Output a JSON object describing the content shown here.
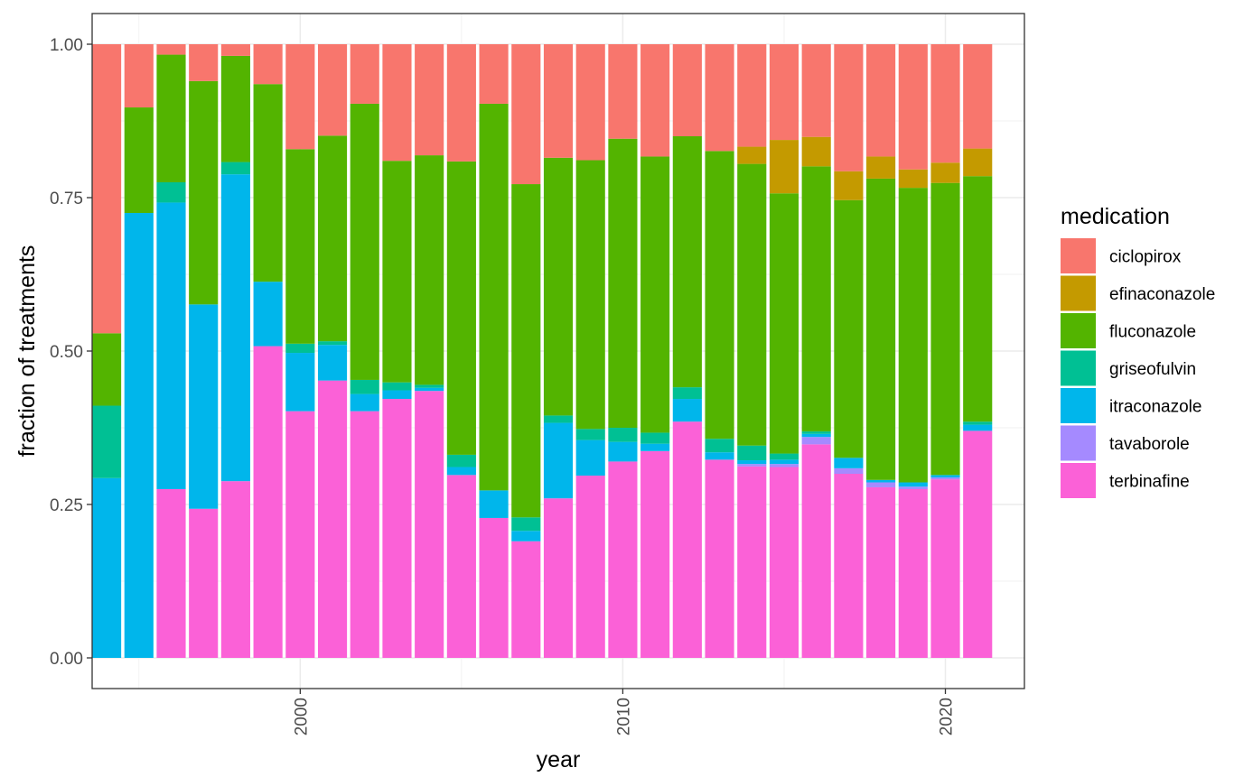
{
  "chart_data": {
    "type": "bar",
    "stacked": true,
    "position": "fill",
    "xlabel": "year",
    "ylabel": "fraction of treatments",
    "ylim": [
      0,
      1
    ],
    "y_ticks": [
      0,
      0.25,
      0.5,
      0.75,
      1
    ],
    "y_tick_labels": [
      "0.00",
      "0.25",
      "0.50",
      "0.75",
      "1.00"
    ],
    "x_ticks": [
      2000,
      2010,
      2020
    ],
    "x_tick_labels": [
      "2000",
      "2010",
      "2020"
    ],
    "xlim": [
      1993.55,
      2022.45
    ],
    "grid": true,
    "legend_title": "medication",
    "legend_position": "right",
    "colors": {
      "ciclopirox": "#F8766D",
      "efinaconazole": "#C49A00",
      "fluconazole": "#53B400",
      "griseofulvin": "#00C094",
      "itraconazole": "#00B6EB",
      "tavaborole": "#A58AFF",
      "terbinafine": "#FB61D7"
    },
    "stack_order_bottom_to_top": [
      "terbinafine",
      "tavaborole",
      "itraconazole",
      "griseofulvin",
      "fluconazole",
      "efinaconazole",
      "ciclopirox"
    ],
    "categories": [
      1994,
      1995,
      1996,
      1997,
      1998,
      1999,
      2000,
      2001,
      2002,
      2003,
      2004,
      2005,
      2006,
      2007,
      2008,
      2009,
      2010,
      2011,
      2012,
      2013,
      2014,
      2015,
      2016,
      2017,
      2018,
      2019,
      2020,
      2021
    ],
    "series": [
      {
        "name": "terbinafine",
        "values": [
          0,
          0,
          0.275,
          0.243,
          0.288,
          0.508,
          0.402,
          0.452,
          0.402,
          0.422,
          0.435,
          0.298,
          0.228,
          0.19,
          0.26,
          0.297,
          0.32,
          0.337,
          0.385,
          0.323,
          0.312,
          0.311,
          0.348,
          0.3,
          0.278,
          0.275,
          0.291,
          0.37
        ]
      },
      {
        "name": "tavaborole",
        "values": [
          0,
          0,
          0,
          0,
          0,
          0,
          0,
          0,
          0,
          0,
          0,
          0,
          0,
          0,
          0,
          0,
          0,
          0,
          0,
          0,
          0.004,
          0.005,
          0.012,
          0.009,
          0.008,
          0.004,
          0.003,
          0
        ]
      },
      {
        "name": "itraconazole",
        "values": [
          0.293,
          0.725,
          0.467,
          0.333,
          0.5,
          0.105,
          0.095,
          0.058,
          0.028,
          0.014,
          0.005,
          0.013,
          0.045,
          0.017,
          0.123,
          0.058,
          0.032,
          0.012,
          0.037,
          0.012,
          0.006,
          0.007,
          0.005,
          0.017,
          0.004,
          0.007,
          0.004,
          0.01
        ]
      },
      {
        "name": "griseofulvin",
        "values": [
          0.118,
          0,
          0.033,
          0,
          0.02,
          0,
          0.015,
          0.006,
          0.023,
          0.013,
          0.005,
          0.02,
          0,
          0.022,
          0.012,
          0.018,
          0.023,
          0.018,
          0.019,
          0.022,
          0.024,
          0.01,
          0.004,
          0,
          0,
          0,
          0,
          0.005
        ]
      },
      {
        "name": "fluconazole",
        "values": [
          0.118,
          0.172,
          0.208,
          0.364,
          0.173,
          0.322,
          0.317,
          0.335,
          0.45,
          0.361,
          0.374,
          0.478,
          0.63,
          0.543,
          0.42,
          0.438,
          0.471,
          0.45,
          0.409,
          0.469,
          0.459,
          0.424,
          0.432,
          0.42,
          0.491,
          0.48,
          0.476,
          0.4
        ]
      },
      {
        "name": "efinaconazole",
        "values": [
          0,
          0,
          0,
          0,
          0,
          0,
          0,
          0,
          0,
          0,
          0,
          0,
          0,
          0,
          0,
          0,
          0,
          0,
          0,
          0,
          0.028,
          0.087,
          0.048,
          0.047,
          0.036,
          0.03,
          0.033,
          0.045
        ]
      },
      {
        "name": "ciclopirox",
        "values": [
          0.471,
          0.103,
          0.017,
          0.06,
          0.019,
          0.065,
          0.171,
          0.149,
          0.097,
          0.19,
          0.181,
          0.191,
          0.097,
          0.228,
          0.185,
          0.189,
          0.154,
          0.183,
          0.15,
          0.174,
          0.167,
          0.156,
          0.151,
          0.207,
          0.183,
          0.204,
          0.193,
          0.17
        ]
      }
    ]
  }
}
